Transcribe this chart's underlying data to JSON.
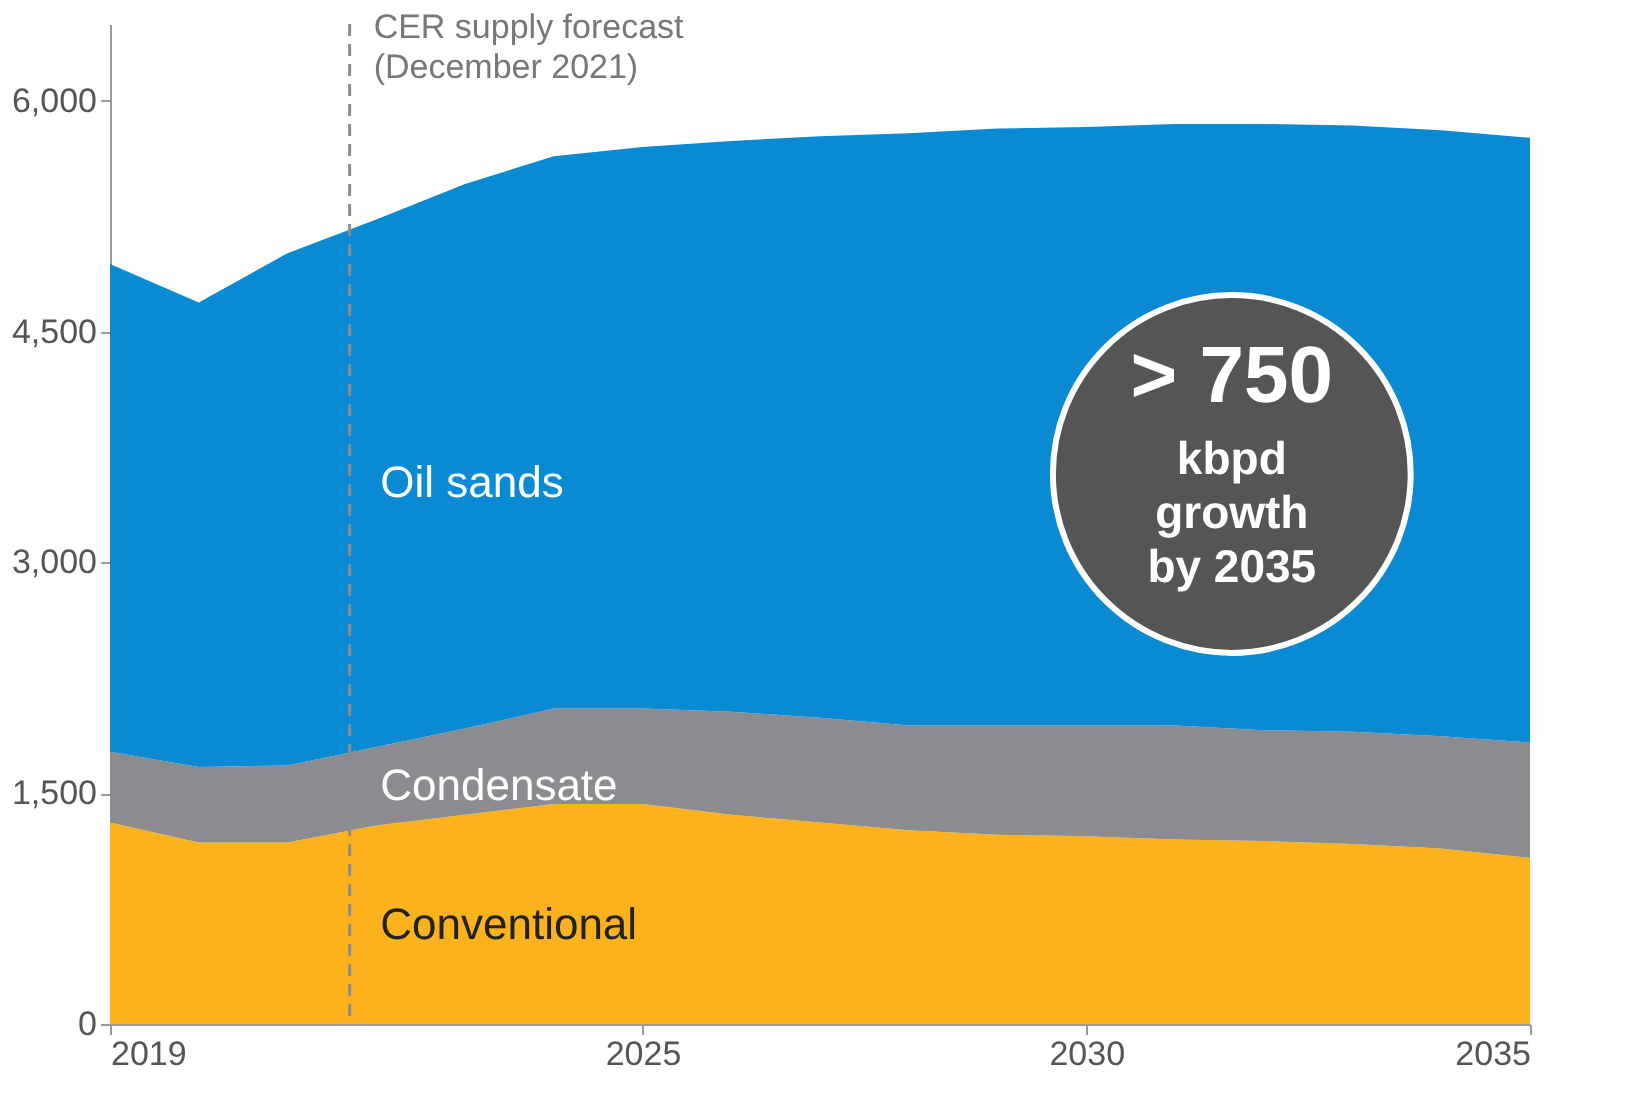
{
  "chart_data": {
    "type": "area",
    "stacked": true,
    "x": [
      2019,
      2020,
      2021,
      2022,
      2023,
      2024,
      2025,
      2026,
      2027,
      2028,
      2029,
      2030,
      2031,
      2032,
      2033,
      2034,
      2035
    ],
    "series": [
      {
        "name": "Conventional",
        "color": "#fbb21d",
        "values": [
          1310,
          1180,
          1180,
          1290,
          1360,
          1430,
          1430,
          1360,
          1310,
          1260,
          1230,
          1220,
          1200,
          1190,
          1170,
          1140,
          1080
        ]
      },
      {
        "name": "Condensate",
        "color": "#8a8c8f",
        "values": [
          460,
          490,
          500,
          510,
          560,
          620,
          620,
          670,
          680,
          680,
          710,
          720,
          740,
          720,
          730,
          730,
          750
        ]
      },
      {
        "name": "Oil sands",
        "color": "#0a8ad2",
        "values": [
          3170,
          3020,
          3330,
          3430,
          3540,
          3590,
          3650,
          3710,
          3780,
          3850,
          3880,
          3890,
          3910,
          3940,
          3940,
          3940,
          3930
        ]
      }
    ],
    "xlim": [
      2019,
      2035
    ],
    "xticks": [
      2019,
      2025,
      2030,
      2035
    ],
    "ylim": [
      0,
      6500
    ],
    "yticks": [
      0,
      {
        "value": 1500,
        "label": "1,500"
      },
      {
        "value": 3000,
        "label": "3,000"
      },
      {
        "value": 4500,
        "label": "4,500"
      },
      {
        "value": 6000,
        "label": "6,000"
      }
    ],
    "grid": false,
    "legend": false,
    "ref_lines": [
      {
        "axis": "x",
        "value": 2021.7,
        "label": "CER supply forecast\n(December 2021)",
        "color": "#8a8c8f",
        "line_style": "dashed"
      }
    ],
    "annotations": [
      "> 750\nkbpd\ngrowth\nby 2035"
    ]
  }
}
